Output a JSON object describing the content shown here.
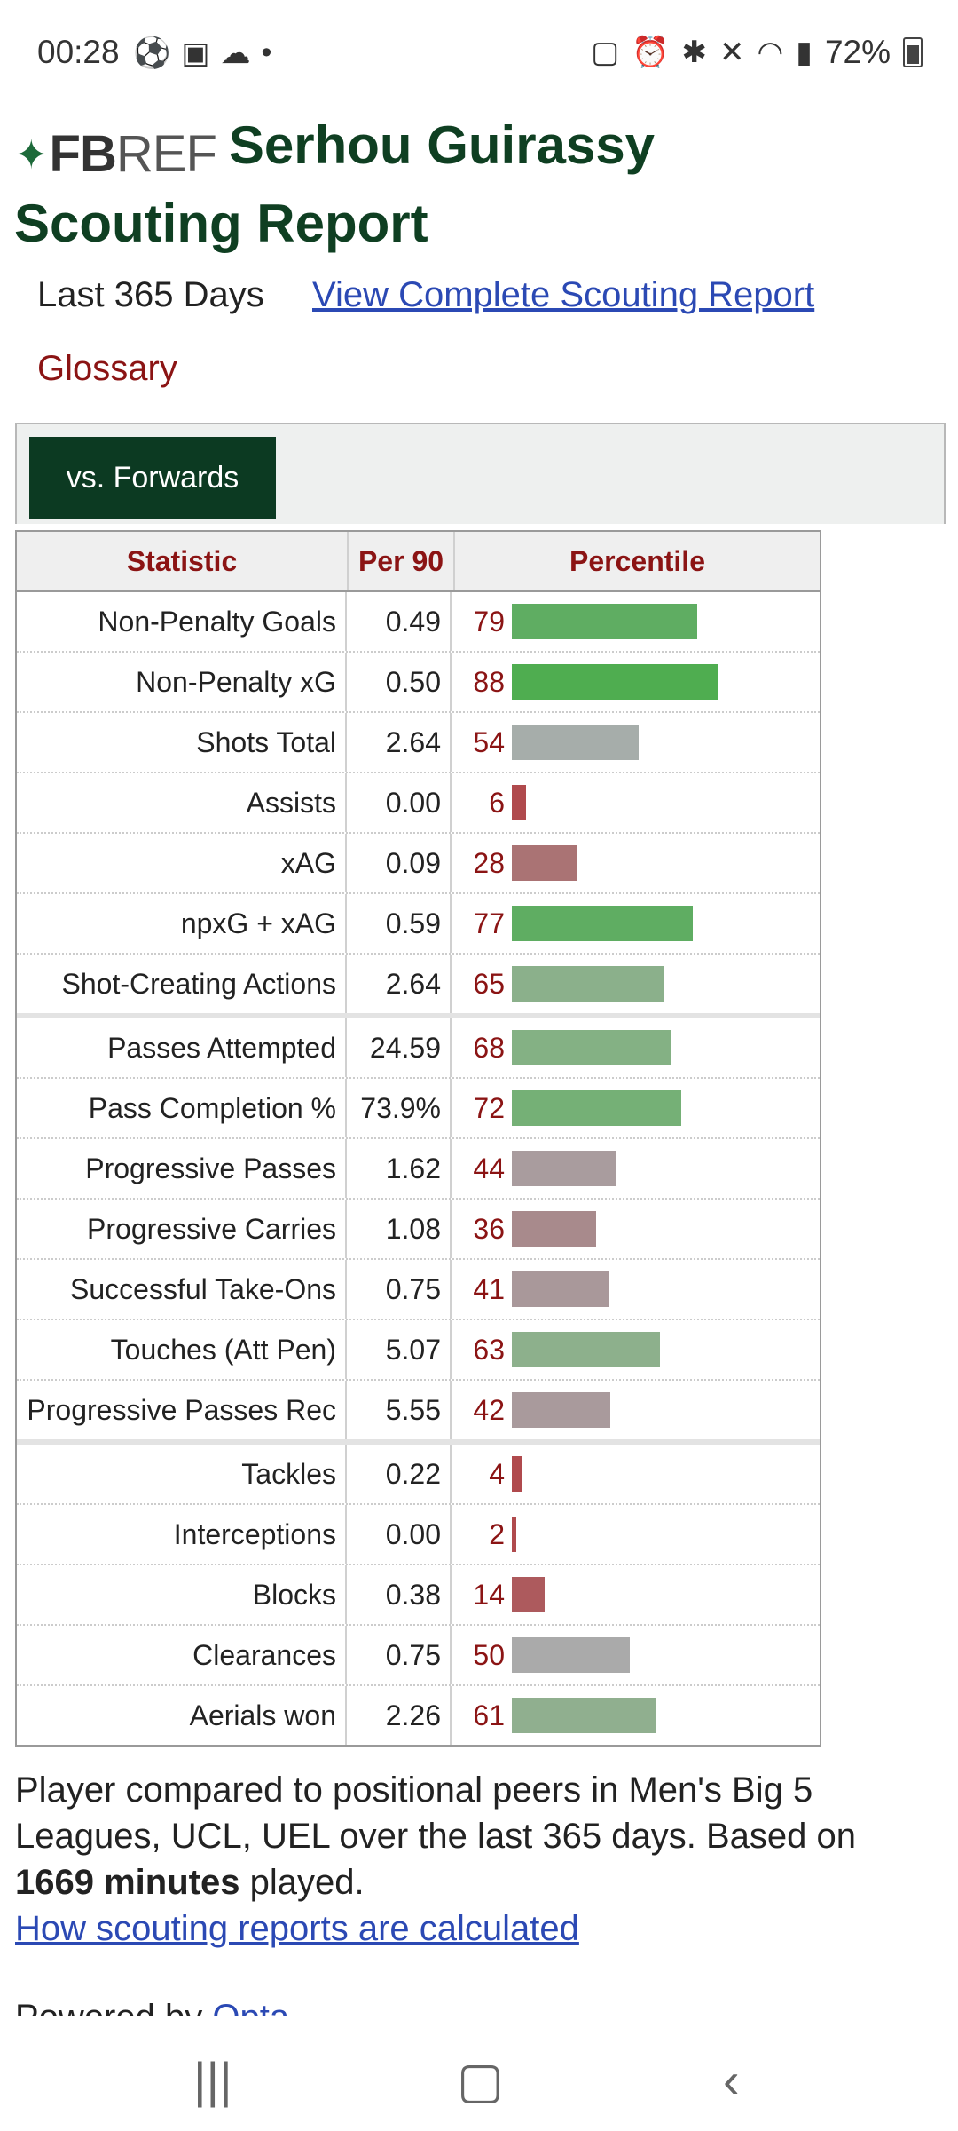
{
  "status_bar": {
    "time": "00:28",
    "battery": "72%",
    "left_icons": [
      "soccer-ball-icon",
      "gallery-icon",
      "cloud-icon",
      "dot-icon"
    ],
    "right_icons": [
      "battery-saver-icon",
      "alarm-icon",
      "bluetooth-icon",
      "mute-icon",
      "wifi-icon",
      "signal-icon"
    ]
  },
  "header": {
    "logo_fb": "FB",
    "logo_ref": "REF",
    "title_line1": "Serhou Guirassy",
    "title_line2": "Scouting Report"
  },
  "meta": {
    "period": "Last 365 Days",
    "complete_link": "View Complete Scouting Report",
    "glossary": "Glossary"
  },
  "tabs": {
    "active": "vs. Forwards"
  },
  "table": {
    "headers": [
      "Statistic",
      "Per 90",
      "Percentile"
    ],
    "colors": {
      "high_green": "#4fad50",
      "mid_green": "#78b27a",
      "soft_green": "#8eb08d",
      "grey": "#a9aeab",
      "mauve": "#a99a9c",
      "rose": "#a97375",
      "low_red": "#b04a4d"
    },
    "groups": [
      [
        {
          "stat": "Non-Penalty Goals",
          "per90": "0.49",
          "pct": "79",
          "color": "#5fad62"
        },
        {
          "stat": "Non-Penalty xG",
          "per90": "0.50",
          "pct": "88",
          "color": "#4fad50"
        },
        {
          "stat": "Shots Total",
          "per90": "2.64",
          "pct": "54",
          "color": "#a6adaa"
        },
        {
          "stat": "Assists",
          "per90": "0.00",
          "pct": "6",
          "color": "#b04a4d"
        },
        {
          "stat": "xAG",
          "per90": "0.09",
          "pct": "28",
          "color": "#aa7374"
        },
        {
          "stat": "npxG + xAG",
          "per90": "0.59",
          "pct": "77",
          "color": "#5fad62"
        },
        {
          "stat": "Shot-Creating Actions",
          "per90": "2.64",
          "pct": "65",
          "color": "#8bb08b"
        }
      ],
      [
        {
          "stat": "Passes Attempted",
          "per90": "24.59",
          "pct": "68",
          "color": "#84b184"
        },
        {
          "stat": "Pass Completion %",
          "per90": "73.9%",
          "pct": "72",
          "color": "#75b076"
        },
        {
          "stat": "Progressive Passes",
          "per90": "1.62",
          "pct": "44",
          "color": "#a99c9e"
        },
        {
          "stat": "Progressive Carries",
          "per90": "1.08",
          "pct": "36",
          "color": "#a88a8c"
        },
        {
          "stat": "Successful Take-Ons",
          "per90": "0.75",
          "pct": "41",
          "color": "#a9989a"
        },
        {
          "stat": "Touches (Att Pen)",
          "per90": "5.07",
          "pct": "63",
          "color": "#8db08c"
        },
        {
          "stat": "Progressive Passes Rec",
          "per90": "5.55",
          "pct": "42",
          "color": "#a99a9c"
        }
      ],
      [
        {
          "stat": "Tackles",
          "per90": "0.22",
          "pct": "4",
          "color": "#b04a4d"
        },
        {
          "stat": "Interceptions",
          "per90": "0.00",
          "pct": "2",
          "color": "#b04a4d"
        },
        {
          "stat": "Blocks",
          "per90": "0.38",
          "pct": "14",
          "color": "#ad5a5d"
        },
        {
          "stat": "Clearances",
          "per90": "0.75",
          "pct": "50",
          "color": "#aaaaaa"
        },
        {
          "stat": "Aerials won",
          "per90": "2.26",
          "pct": "61",
          "color": "#90af8f"
        }
      ]
    ]
  },
  "footer": {
    "text_prefix": "Player compared to positional peers in Men's Big 5 Leagues, UCL, UEL over the last 365 days. Based on ",
    "minutes": "1669 minutes",
    "text_suffix": " played.",
    "calc_link": "How scouting reports are calculated",
    "powered_by": "Powered by ",
    "opta": "Opta"
  },
  "navbar": {
    "recent": "recent-apps-icon",
    "home": "home-icon",
    "back": "back-icon"
  }
}
